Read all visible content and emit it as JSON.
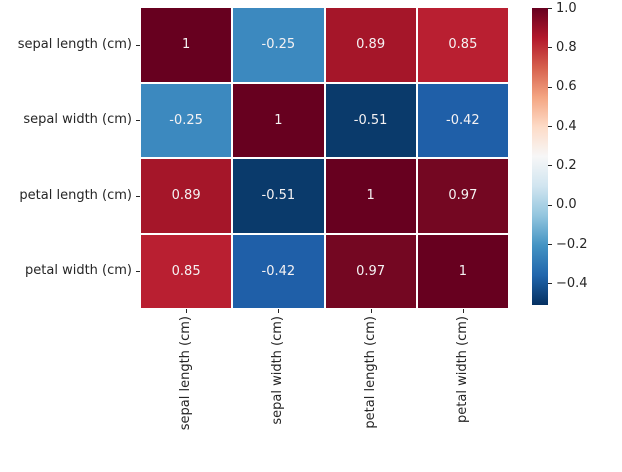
{
  "figure": {
    "background_color": "#ffffff",
    "text_color": "#262626"
  },
  "chart_data": {
    "type": "heatmap",
    "title": "",
    "x_labels": [
      "sepal length (cm)",
      "sepal width (cm)",
      "petal length (cm)",
      "petal width (cm)"
    ],
    "y_labels": [
      "sepal length (cm)",
      "sepal width (cm)",
      "petal length (cm)",
      "petal width (cm)"
    ],
    "values": [
      [
        1,
        -0.25,
        0.89,
        0.85
      ],
      [
        -0.25,
        1,
        -0.51,
        -0.42
      ],
      [
        0.89,
        -0.51,
        1,
        0.97
      ],
      [
        0.85,
        -0.42,
        0.97,
        1
      ]
    ],
    "annotations": [
      [
        "1",
        "-0.25",
        "0.89",
        "0.85"
      ],
      [
        "-0.25",
        "1",
        "-0.51",
        "-0.42"
      ],
      [
        "0.89",
        "-0.51",
        "1",
        "0.97"
      ],
      [
        "0.85",
        "-0.42",
        "0.97",
        "1"
      ]
    ],
    "annotation_color": "#f5f2f3",
    "cell_colors": [
      [
        "#67001f",
        "#3c89bf",
        "#a51629",
        "#b91f31"
      ],
      [
        "#3c89bf",
        "#67001f",
        "#0a3a6b",
        "#1f5fa8"
      ],
      [
        "#a51629",
        "#0a3a6b",
        "#67001f",
        "#740722"
      ],
      [
        "#b91f31",
        "#1f5fa8",
        "#740722",
        "#67001f"
      ]
    ],
    "colormap": "RdBu_r",
    "legend_position": "right",
    "colorbar": {
      "tick_labels": [
        "1.0",
        "0.8",
        "0.6",
        "0.4",
        "0.2",
        "0.0",
        "−0.2",
        "−0.4"
      ],
      "tick_values": [
        1.0,
        0.8,
        0.6,
        0.4,
        0.2,
        0.0,
        -0.2,
        -0.4
      ],
      "gradient_stops": [
        "#67001f",
        "#b2182b",
        "#d6604d",
        "#f4a582",
        "#fddbc7",
        "#f7f7f7",
        "#d1e5f0",
        "#92c5de",
        "#4393c3",
        "#2166ac",
        "#053061"
      ]
    }
  }
}
